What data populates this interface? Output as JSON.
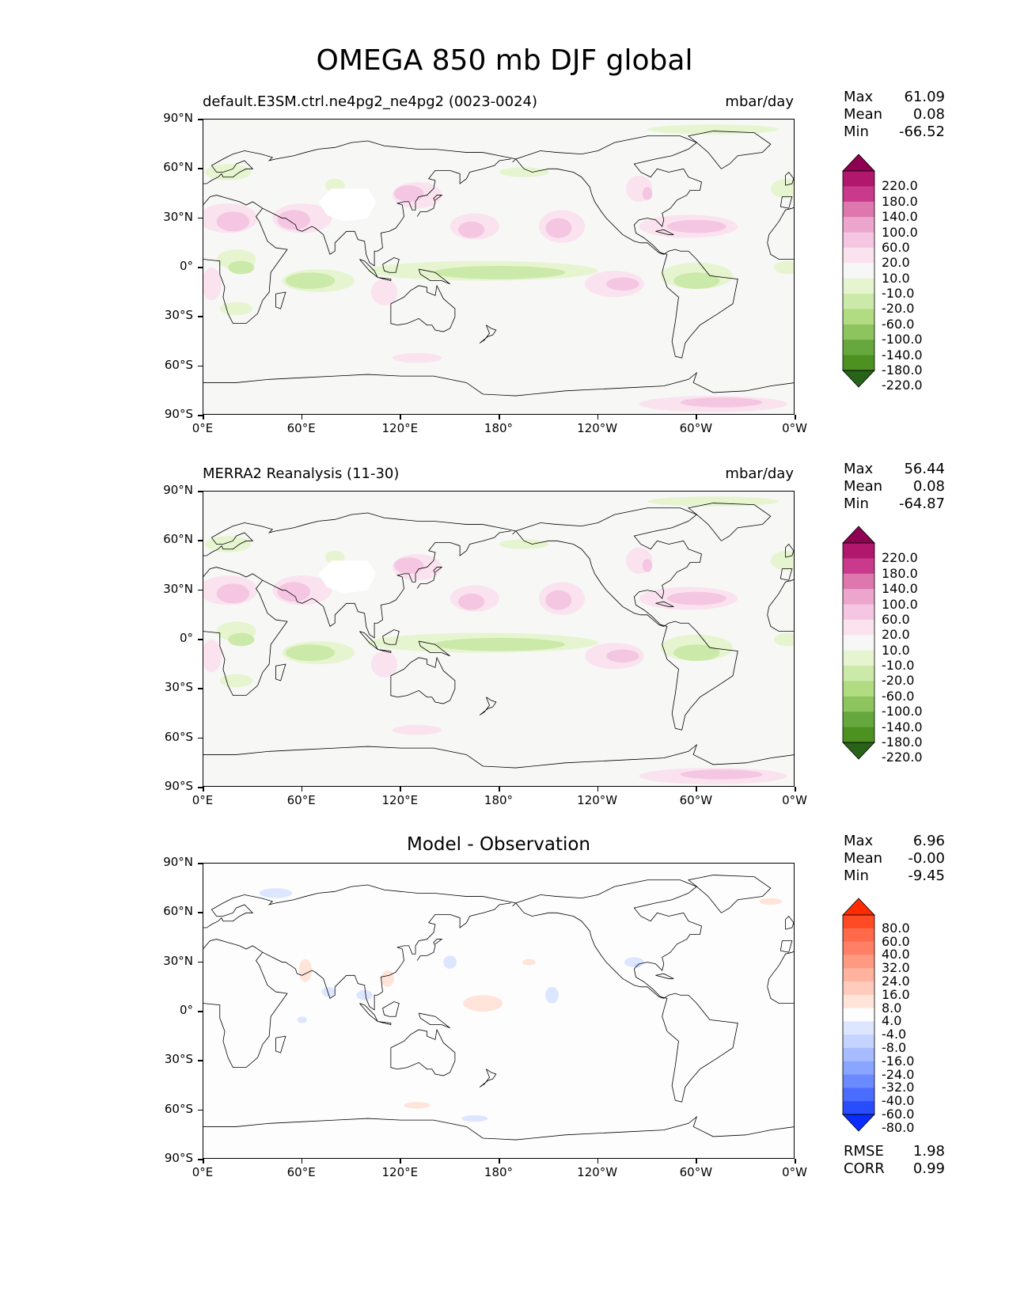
{
  "figure_title": "OMEGA 850 mb DJF global",
  "y_ticks": [
    "90°N",
    "60°N",
    "30°N",
    "0°",
    "30°S",
    "60°S",
    "90°S"
  ],
  "x_ticks": [
    "0°E",
    "60°E",
    "120°E",
    "180°",
    "120°W",
    "60°W",
    "0°W"
  ],
  "panels": [
    {
      "id": "test",
      "title_left": "default.E3SM.ctrl.ne4pg2_ne4pg2 (0023-0024)",
      "title_right": "mbar/day",
      "stats": {
        "max_label": "Max",
        "max": "61.09",
        "mean_label": "Mean",
        "mean": "0.08",
        "min_label": "Min",
        "min": "-66.52"
      },
      "colorbar": {
        "levels": [
          "220.0",
          "180.0",
          "140.0",
          "100.0",
          "60.0",
          "20.0",
          "10.0",
          "-10.0",
          "-20.0",
          "-60.0",
          "-100.0",
          "-140.0",
          "-180.0",
          "-220.0"
        ],
        "colors": [
          "#8e0152",
          "#b0176d",
          "#c9398c",
          "#de77ae",
          "#eca6cd",
          "#f4c6e2",
          "#fae3ef",
          "#f7f7f7",
          "#e6f5d0",
          "#cbe9a8",
          "#b1dc81",
          "#8ec45e",
          "#66a83d",
          "#4d9221",
          "#276419"
        ]
      }
    },
    {
      "id": "ref",
      "title_left": "MERRA2 Reanalysis (11-30)",
      "title_right": "mbar/day",
      "stats": {
        "max_label": "Max",
        "max": "56.44",
        "mean_label": "Mean",
        "mean": "0.08",
        "min_label": "Min",
        "min": "-64.87"
      },
      "colorbar": {
        "levels": [
          "220.0",
          "180.0",
          "140.0",
          "100.0",
          "60.0",
          "20.0",
          "10.0",
          "-10.0",
          "-20.0",
          "-60.0",
          "-100.0",
          "-140.0",
          "-180.0",
          "-220.0"
        ],
        "colors": [
          "#8e0152",
          "#b0176d",
          "#c9398c",
          "#de77ae",
          "#eca6cd",
          "#f4c6e2",
          "#fae3ef",
          "#f7f7f7",
          "#e6f5d0",
          "#cbe9a8",
          "#b1dc81",
          "#8ec45e",
          "#66a83d",
          "#4d9221",
          "#276419"
        ]
      }
    },
    {
      "id": "diff",
      "title_center": "Model - Observation",
      "stats": {
        "max_label": "Max",
        "max": "6.96",
        "mean_label": "Mean",
        "mean": "-0.00",
        "min_label": "Min",
        "min": "-9.45"
      },
      "colorbar": {
        "levels": [
          "80.0",
          "60.0",
          "40.0",
          "32.0",
          "24.0",
          "16.0",
          "8.0",
          "4.0",
          "-4.0",
          "-8.0",
          "-16.0",
          "-24.0",
          "-32.0",
          "-40.0",
          "-60.0",
          "-80.0"
        ],
        "colors": [
          "#ff2a00",
          "#ff4a26",
          "#ff6a4a",
          "#ff8066",
          "#ff9a82",
          "#ffb29e",
          "#ffcbbd",
          "#ffe4da",
          "#fdfdfd",
          "#dde6ff",
          "#c4d3ff",
          "#a7bcff",
          "#8aa5ff",
          "#6b8aff",
          "#4a6cff",
          "#2a4cff",
          "#0a2cff"
        ]
      },
      "metrics": {
        "rmse_label": "RMSE",
        "rmse": "1.98",
        "corr_label": "CORR",
        "corr": "0.99"
      }
    }
  ]
}
